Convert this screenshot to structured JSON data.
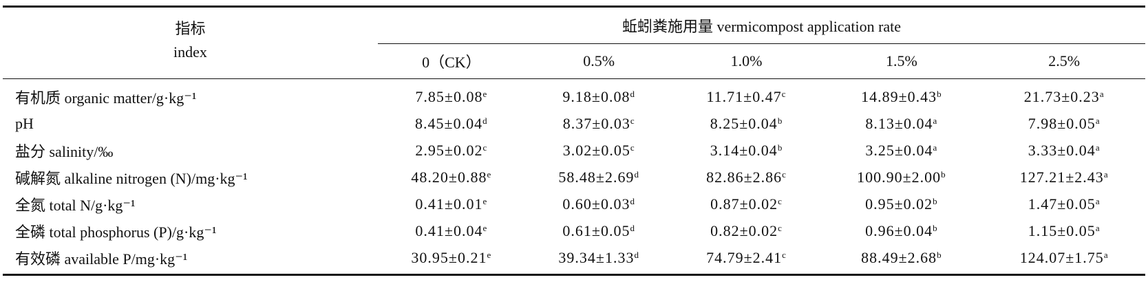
{
  "table": {
    "index_header": [
      "指标",
      "index"
    ],
    "group_header": "蚯蚓粪施用量 vermicompost application rate",
    "columns": [
      "0（CK）",
      "0.5%",
      "1.0%",
      "1.5%",
      "2.5%"
    ],
    "rows": [
      {
        "label": "有机质 organic matter/g·kg⁻¹",
        "cells": [
          [
            "7.85±0.08",
            "e"
          ],
          [
            "9.18±0.08",
            "d"
          ],
          [
            "11.71±0.47",
            "c"
          ],
          [
            "14.89±0.43",
            "b"
          ],
          [
            "21.73±0.23",
            "a"
          ]
        ]
      },
      {
        "label": "pH",
        "cells": [
          [
            "8.45±0.04",
            "d"
          ],
          [
            "8.37±0.03",
            "c"
          ],
          [
            "8.25±0.04",
            "b"
          ],
          [
            "8.13±0.04",
            "a"
          ],
          [
            "7.98±0.05",
            "a"
          ]
        ]
      },
      {
        "label": "盐分 salinity/‰",
        "cells": [
          [
            "2.95±0.02",
            "c"
          ],
          [
            "3.02±0.05",
            "c"
          ],
          [
            "3.14±0.04",
            "b"
          ],
          [
            "3.25±0.04",
            "a"
          ],
          [
            "3.33±0.04",
            "a"
          ]
        ]
      },
      {
        "label": "碱解氮 alkaline nitrogen (N)/mg·kg⁻¹",
        "cells": [
          [
            "48.20±0.88",
            "e"
          ],
          [
            "58.48±2.69",
            "d"
          ],
          [
            "82.86±2.86",
            "c"
          ],
          [
            "100.90±2.00",
            "b"
          ],
          [
            "127.21±2.43",
            "a"
          ]
        ]
      },
      {
        "label": "全氮 total N/g·kg⁻¹",
        "cells": [
          [
            "0.41±0.01",
            "e"
          ],
          [
            "0.60±0.03",
            "d"
          ],
          [
            "0.87±0.02",
            "c"
          ],
          [
            "0.95±0.02",
            "b"
          ],
          [
            "1.47±0.05",
            "a"
          ]
        ]
      },
      {
        "label": "全磷 total phosphorus (P)/g·kg⁻¹",
        "cells": [
          [
            "0.41±0.04",
            "e"
          ],
          [
            "0.61±0.05",
            "d"
          ],
          [
            "0.82±0.02",
            "c"
          ],
          [
            "0.96±0.04",
            "b"
          ],
          [
            "1.15±0.05",
            "a"
          ]
        ]
      },
      {
        "label": "有效磷 available P/mg·kg⁻¹",
        "cells": [
          [
            "30.95±0.21",
            "e"
          ],
          [
            "39.34±1.33",
            "d"
          ],
          [
            "74.79±2.41",
            "c"
          ],
          [
            "88.49±2.68",
            "b"
          ],
          [
            "124.07±1.75",
            "a"
          ]
        ]
      }
    ]
  }
}
